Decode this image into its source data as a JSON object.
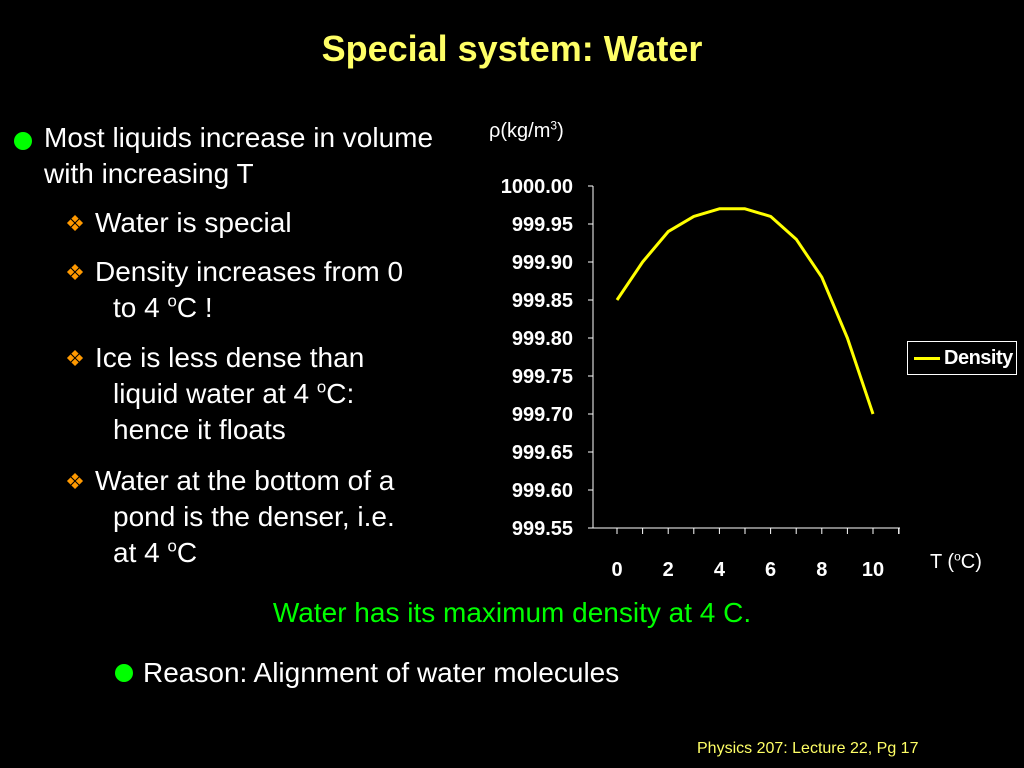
{
  "slide": {
    "title": "Special system: Water",
    "bullets": [
      {
        "text": "Most liquids increase in volume with increasing T",
        "subs": [
          {
            "line1": "Water is special"
          },
          {
            "line1": "Density increases from 0",
            "line2_pre": "to 4 ",
            "line2_sup": "o",
            "line2_post": "C !"
          },
          {
            "line1": "Ice is less dense than",
            "line2_pre": "liquid water at 4 ",
            "line2_sup": "o",
            "line2_post": "C:",
            "line3": "hence it floats"
          },
          {
            "line1": "Water at the bottom of a",
            "line2_pre": "pond is the denser, i.e.",
            "line3_pre": "at 4 ",
            "line3_sup": "o",
            "line3_post": "C"
          }
        ]
      }
    ],
    "note": "Water has its maximum density at 4 C.",
    "reason": "Reason: Alignment of water molecules",
    "footer": "Physics 207: Lecture 22, Pg 17"
  },
  "colors": {
    "background": "#000000",
    "title": "#ffff66",
    "bullet_dot": "#00ff00",
    "sub_bullet": "#ff9900",
    "note": "#00ff00",
    "series_line": "#ffff00"
  },
  "icons": {
    "bullet": "green-dot-icon",
    "sub_bullet": "diamond-bullet-icon"
  },
  "chart_data": {
    "type": "line",
    "ylabel_pre": "ρ(kg/m",
    "ylabel_sup": "3",
    "ylabel_post": ")",
    "xlabel_pre": "T (",
    "xlabel_sup": "o",
    "xlabel_post": "C)",
    "x_tick_labels": [
      "0",
      "2",
      "4",
      "6",
      "8",
      "10"
    ],
    "y_tick_labels": [
      "1000.00",
      "999.95",
      "999.90",
      "999.85",
      "999.80",
      "999.75",
      "999.70",
      "999.65",
      "999.60",
      "999.55"
    ],
    "xlim": [
      0,
      10
    ],
    "ylim": [
      999.55,
      1000.0
    ],
    "grid": false,
    "legend_position": "right",
    "series": [
      {
        "name": "Density",
        "x": [
          0,
          1,
          2,
          3,
          4,
          5,
          6,
          7,
          8,
          9,
          10
        ],
        "values": [
          999.85,
          999.9,
          999.94,
          999.96,
          999.97,
          999.97,
          999.96,
          999.93,
          999.88,
          999.8,
          999.7
        ]
      }
    ]
  }
}
